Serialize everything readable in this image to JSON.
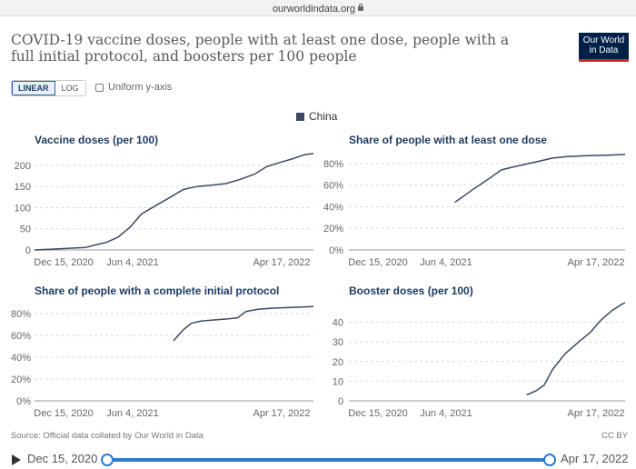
{
  "browser": {
    "url": "ourworldindata.org"
  },
  "title": "COVID-19 vaccine doses, people with at least one dose, people with a full initial protocol, and boosters per 100 people",
  "logo": {
    "line1": "Our World",
    "line2": "in Data"
  },
  "controls": {
    "linear_label": "LINEAR",
    "log_label": "LOG",
    "uniform_label": "Uniform y-axis",
    "uniform_checked": false
  },
  "legend": {
    "label": "China",
    "color": "#3d4a64"
  },
  "colors": {
    "line": "#3d4a64",
    "title": "#1d3d63",
    "grid": "#d9d9d9",
    "timeline": "#2a7bd4"
  },
  "chart_data": [
    {
      "type": "line",
      "title": "Vaccine doses (per 100)",
      "x_tick_labels": [
        "Dec 15, 2020",
        "Jun 4, 2021",
        "Apr 17, 2022"
      ],
      "ylim": [
        0,
        230
      ],
      "y_ticks": [
        0,
        50,
        100,
        150,
        200
      ],
      "y_tick_labels": [
        "0",
        "50",
        "100",
        "150",
        "200"
      ],
      "grid": true,
      "series": [
        {
          "x": [
            "2020-12-15",
            "2021-01-15",
            "2021-02-15",
            "2021-03-15",
            "2021-04-01",
            "2021-04-20",
            "2021-05-10",
            "2021-06-01",
            "2021-06-20",
            "2021-07-15",
            "2021-08-10",
            "2021-09-01",
            "2021-09-25",
            "2021-10-20",
            "2021-11-15",
            "2021-12-10",
            "2022-01-05",
            "2022-01-25",
            "2022-02-15",
            "2022-03-10",
            "2022-04-01",
            "2022-04-17"
          ],
          "y": [
            0,
            2,
            4,
            6,
            12,
            18,
            30,
            55,
            85,
            105,
            125,
            143,
            150,
            153,
            157,
            167,
            180,
            197,
            206,
            215,
            225,
            228
          ]
        }
      ]
    },
    {
      "type": "line",
      "title": "Share of people with at least one dose",
      "x_tick_labels": [
        "Dec 15, 2020",
        "Jun 4, 2021",
        "Apr 17, 2022"
      ],
      "ylim": [
        0,
        90
      ],
      "y_ticks": [
        0,
        20,
        40,
        60,
        80
      ],
      "y_tick_labels": [
        "0%",
        "20%",
        "40%",
        "60%",
        "80%"
      ],
      "grid": true,
      "series": [
        {
          "x": [
            "2021-06-20",
            "2021-07-25",
            "2021-08-25",
            "2021-09-10",
            "2021-09-25",
            "2021-10-20",
            "2021-11-15",
            "2021-12-10",
            "2022-01-05",
            "2022-02-10",
            "2022-03-15",
            "2022-04-17"
          ],
          "y": [
            44,
            57,
            68,
            74,
            76,
            79,
            82,
            85,
            86.5,
            87.2,
            87.7,
            88.3
          ]
        }
      ]
    },
    {
      "type": "line",
      "title": "Share of people with a complete initial protocol",
      "x_tick_labels": [
        "Dec 15, 2020",
        "Jun 4, 2021",
        "Apr 17, 2022"
      ],
      "ylim": [
        0,
        90
      ],
      "y_ticks": [
        0,
        20,
        40,
        60,
        80
      ],
      "y_tick_labels": [
        "0%",
        "20%",
        "40%",
        "60%",
        "80%"
      ],
      "grid": true,
      "series": [
        {
          "x": [
            "2021-08-15",
            "2021-09-01",
            "2021-09-15",
            "2021-10-01",
            "2021-10-20",
            "2021-11-15",
            "2021-12-05",
            "2021-12-20",
            "2022-01-10",
            "2022-02-05",
            "2022-03-05",
            "2022-04-17"
          ],
          "y": [
            55,
            65,
            71,
            73,
            74,
            75,
            76,
            82,
            84,
            85,
            85.5,
            86.5
          ]
        }
      ]
    },
    {
      "type": "line",
      "title": "Booster doses (per 100)",
      "x_tick_labels": [
        "Dec 15, 2020",
        "Jun 4, 2021",
        "Apr 17, 2022"
      ],
      "ylim": [
        0,
        50
      ],
      "y_ticks": [
        0,
        10,
        20,
        30,
        40
      ],
      "y_tick_labels": [
        "0",
        "10",
        "20",
        "30",
        "40"
      ],
      "grid": true,
      "series": [
        {
          "x": [
            "2021-10-25",
            "2021-11-10",
            "2021-11-25",
            "2021-12-10",
            "2022-01-01",
            "2022-01-25",
            "2022-02-15",
            "2022-03-05",
            "2022-03-25",
            "2022-04-10",
            "2022-04-17"
          ],
          "y": [
            3,
            5,
            8,
            16,
            24,
            30,
            35,
            41,
            46,
            49,
            50
          ]
        }
      ]
    }
  ],
  "source": "Source: Official data collated by Our World in Data",
  "license": "CC BY",
  "timeline": {
    "start_label": "Dec 15, 2020",
    "end_label": "Apr 17, 2022",
    "start_position": 0,
    "end_position": 1
  }
}
